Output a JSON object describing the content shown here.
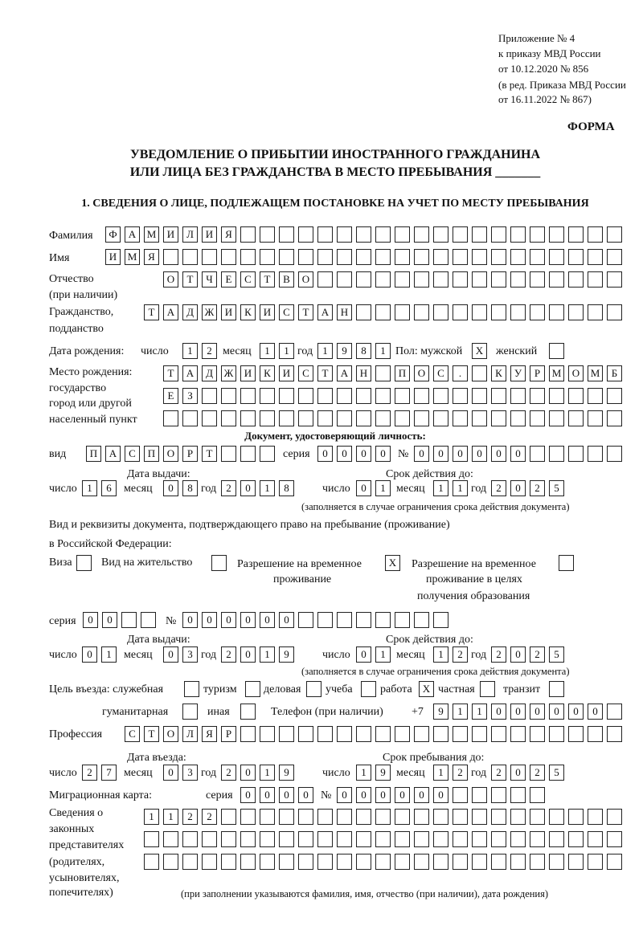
{
  "header": {
    "line1": "Приложение № 4",
    "line2": "к приказу МВД России",
    "line3": "от 10.12.2020 № 856",
    "line4": "(в ред. Приказа МВД России",
    "line5": "от 16.11.2022 № 867)",
    "form_label": "ФОРМА",
    "title1": "УВЕДОМЛЕНИЕ О ПРИБЫТИИ ИНОСТРАННОГО ГРАЖДАНИНА",
    "title2": "ИЛИ ЛИЦА БЕЗ ГРАЖДАНСТВА В МЕСТО ПРЕБЫВАНИЯ _______",
    "section1": "1. СВЕДЕНИЯ О ЛИЦЕ, ПОДЛЕЖАЩЕМ ПОСТАНОВКЕ НА УЧЕТ ПО МЕСТУ ПРЕБЫВАНИЯ"
  },
  "labels": {
    "surname": "Фамилия",
    "name": "Имя",
    "patronymic1": "Отчество",
    "patronymic2": "(при наличии)",
    "citizenship1": "Гражданство,",
    "citizenship2": "подданство",
    "birth_date": "Дата рождения:",
    "day": "число",
    "month": "месяц",
    "year": "год",
    "sex": "Пол: мужской",
    "female": "женский",
    "birth_place1": "Место рождения:",
    "birth_place2": "государство",
    "birth_place3": "город или другой",
    "birth_place4": "населенный пункт",
    "id_doc": "Документ, удостоверяющий личность:",
    "kind": "вид",
    "series": "серия",
    "number": "№",
    "issue_date": "Дата выдачи:",
    "valid_until": "Срок действия до:",
    "validity_note": "(заполняется в случае ограничения срока действия документа)",
    "right_doc1": "Вид и реквизиты документа, подтверждающего право на пребывание (проживание)",
    "right_doc2": "в Российской Федерации:",
    "visa": "Виза",
    "residence": "Вид на жительство",
    "trp1": "Разрешение на временное",
    "trp2": "проживание",
    "trp_edu1": "Разрешение на временное",
    "trp_edu2": "проживание в целях",
    "trp_edu3": "получения образования",
    "purpose": "Цель въезда: служебная",
    "tourism": "туризм",
    "business": "деловая",
    "study": "учеба",
    "work": "работа",
    "private": "частная",
    "transit": "транзит",
    "humanitarian": "гуманитарная",
    "other": "иная",
    "phone": "Телефон (при наличии)",
    "phone_prefix": "+7",
    "profession": "Профессия",
    "entry_date": "Дата въезда:",
    "stay_until": "Срок пребывания до:",
    "migration_card": "Миграционная карта:",
    "reps1": "Сведения о",
    "reps2": "законных",
    "reps3": "представителях",
    "reps4": "(родителях,",
    "reps5": "усыновителях,",
    "reps6": "попечителях)",
    "reps_note": "(при заполнении указываются фамилия, имя, отчество (при наличии), дата рождения)"
  },
  "fields": {
    "surname": "ФАМИЛИЯ",
    "name": "ИМЯ",
    "patronymic": "ОТЧЕСТВО",
    "citizenship": "ТАДЖИКИСТАН",
    "birth_day": "12",
    "birth_month": "11",
    "birth_year": "1981",
    "sex_male": "X",
    "sex_female": "",
    "birth_place_1": "ТАДЖИКИСТАН ПОС. КУРМОМБ",
    "birth_place_2": "ЕЗ",
    "birth_place_3": "",
    "doc_kind": "ПАСПОРТ",
    "doc_series": "0000",
    "doc_number": "000000",
    "doc_issue_day": "16",
    "doc_issue_month": "08",
    "doc_issue_year": "2018",
    "doc_valid_day": "01",
    "doc_valid_month": "11",
    "doc_valid_year": "2025",
    "visa": "",
    "residence_permit": "",
    "trp": "X",
    "trp_edu": "",
    "right_series": "00",
    "right_number": "000000",
    "right_issue_day": "01",
    "right_issue_month": "03",
    "right_issue_year": "2019",
    "right_valid_day": "01",
    "right_valid_month": "12",
    "right_valid_year": "2025",
    "purpose_service": "",
    "purpose_tourism": "",
    "purpose_business": "",
    "purpose_study": "",
    "purpose_work": "X",
    "purpose_private": "",
    "purpose_transit": "",
    "purpose_humanitarian": "",
    "purpose_other": "",
    "phone": "911000000",
    "profession": "СТОЛЯР",
    "entry_day": "27",
    "entry_month": "03",
    "entry_year": "2019",
    "stay_day": "19",
    "stay_month": "12",
    "stay_year": "2025",
    "mig_series": "0000",
    "mig_number": "000000",
    "reps_1": "1122",
    "reps_2": "",
    "reps_3": ""
  }
}
